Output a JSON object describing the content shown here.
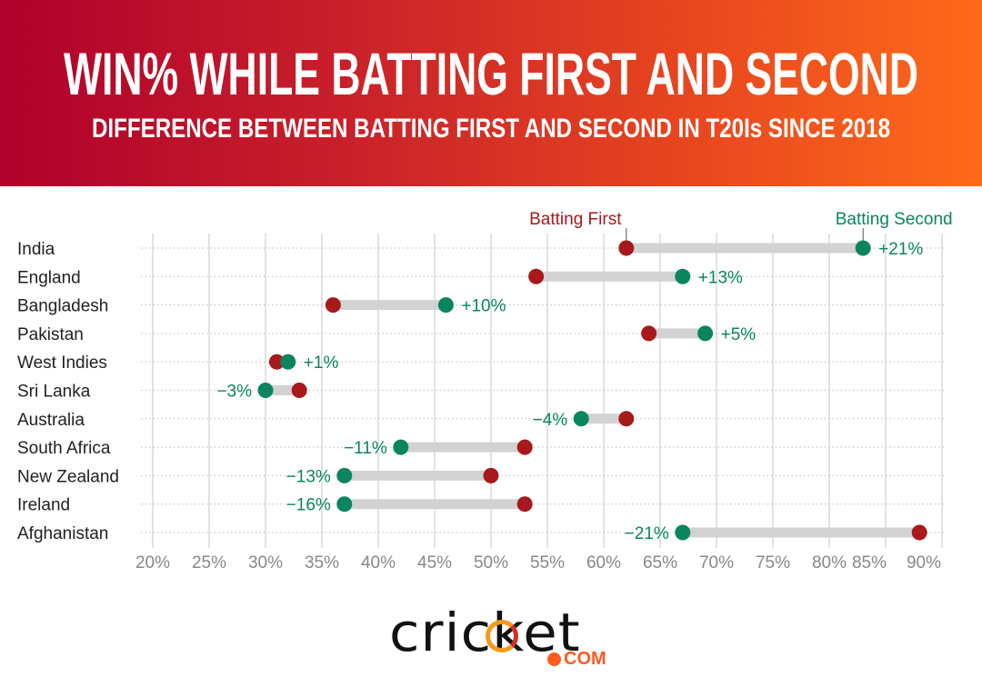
{
  "header": {
    "title": "WIN% WHILE BATTING FIRST AND SECOND",
    "subtitle": "DIFFERENCE BETWEEN BATTING FIRST AND SECOND IN T20Is SINCE 2018"
  },
  "chart_data": {
    "type": "dumbbell",
    "title": "WIN% WHILE BATTING FIRST AND SECOND",
    "subtitle": "DIFFERENCE BETWEEN BATTING FIRST AND SECOND IN T20Is SINCE 2018",
    "xlim": [
      20,
      90
    ],
    "x_ticks": [
      "20%",
      "25%",
      "30%",
      "35%",
      "40%",
      "45%",
      "50%",
      "55%",
      "60%",
      "65%",
      "70%",
      "75%",
      "80%",
      "85%",
      "90%"
    ],
    "x_tick_values": [
      20,
      25,
      30,
      35,
      40,
      45,
      50,
      55,
      60,
      65,
      70,
      75,
      80,
      85,
      90
    ],
    "legend": {
      "first": "Batting First",
      "second": "Batting Second"
    },
    "categories": [
      "India",
      "England",
      "Bangladesh",
      "Pakistan",
      "West Indies",
      "Sri Lanka",
      "Australia",
      "South Africa",
      "New Zealand",
      "Ireland",
      "Afghanistan"
    ],
    "series": [
      {
        "name": "Batting First",
        "color": "#a8191c",
        "values": [
          62,
          54,
          36,
          64,
          31,
          33,
          62,
          53,
          50,
          53,
          88
        ]
      },
      {
        "name": "Batting Second",
        "color": "#0a8560",
        "values": [
          83,
          67,
          46,
          69,
          32,
          30,
          58,
          42,
          37,
          37,
          67
        ]
      }
    ],
    "difference_labels": [
      "+21%",
      "+13%",
      "+10%",
      "+5%",
      "+1%",
      "−3%",
      "−4%",
      "−11%",
      "−13%",
      "−16%",
      "−21%"
    ]
  },
  "logo": {
    "word": "cricket",
    "suffix": "COM"
  }
}
